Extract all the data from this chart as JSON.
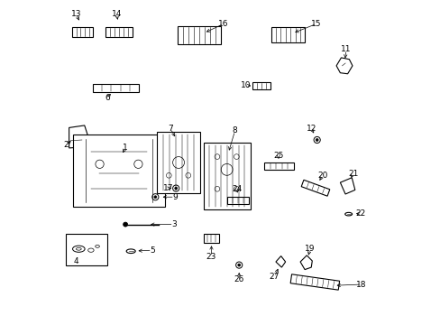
{
  "background": "#ffffff",
  "line_color": "#000000",
  "line_width": 0.8
}
